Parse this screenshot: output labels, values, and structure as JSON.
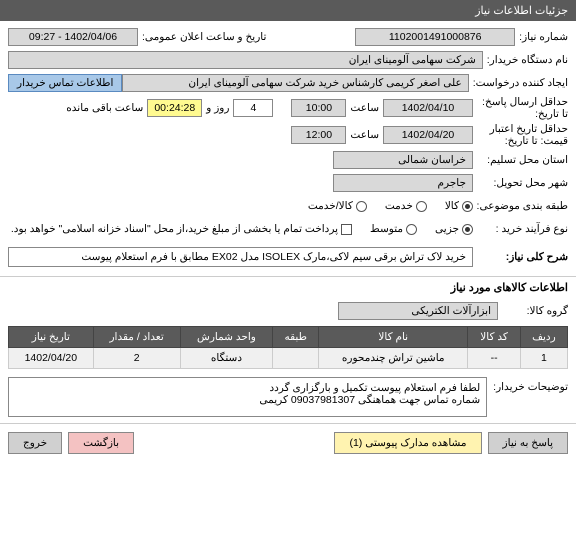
{
  "header": {
    "title": "جزئیات اطلاعات نیاز"
  },
  "form": {
    "need_number_lbl": "شماره نیاز:",
    "need_number": "1102001491000876",
    "public_date_lbl": "تاریخ و ساعت اعلان عمومی:",
    "public_date": "1402/04/06 - 09:27",
    "buyer_name_lbl": "نام دستگاه خریدار:",
    "buyer_name": "شرکت سهامی آلومینای ایران",
    "requester_lbl": "ایجاد کننده درخواست:",
    "requester": "علی اصغر کریمی کارشناس خرید شرکت سهامی آلومینای ایران",
    "contact_btn": "اطلاعات تماس خریدار",
    "deadline_lbl": "حداقل ارسال پاسخ:",
    "deadline_date_lbl": "تا تاریخ:",
    "deadline_date": "1402/04/10",
    "deadline_time_lbl": "ساعت",
    "deadline_time": "10:00",
    "days_lbl": "روز و",
    "days": "4",
    "countdown": "00:24:28",
    "remaining_lbl": "ساعت باقی مانده",
    "validity_lbl": "حداقل تاریخ اعتبار",
    "validity_lbl2": "قیمت: تا تاریخ:",
    "validity_date": "1402/04/20",
    "validity_time_lbl": "ساعت",
    "validity_time": "12:00",
    "province_lbl": "استان محل تسلیم:",
    "province": "خراسان شمالی",
    "city_lbl": "شهر محل تحویل:",
    "city": "جاجرم",
    "category_lbl": "طبقه بندی موضوعی:",
    "cat_goods": "کالا",
    "cat_service": "خدمت",
    "cat_both": "کالا/خدمت",
    "process_lbl": "نوع فرآیند خرید :",
    "proc_low": "جزیی",
    "proc_mid": "متوسط",
    "payment_note": "پرداخت تمام یا بخشی از مبلغ خرید،از محل \"اسناد خزانه اسلامی\" خواهد بود.",
    "desc_lbl": "شرح کلی نیاز:",
    "desc": "خرید لاک تراش برقی سیم لاکی،مارک ISOLEX مدل EX02 مطابق با فرم استعلام پیوست"
  },
  "items_section": {
    "title": "اطلاعات کالاهای مورد نیاز",
    "group_lbl": "گروه کالا:",
    "group": "ابزارآلات الکتریکی",
    "cols": [
      "ردیف",
      "کد کالا",
      "نام کالا",
      "طبقه",
      "واحد شمارش",
      "تعداد / مقدار",
      "تاریخ نیاز"
    ],
    "rows": [
      [
        "1",
        "--",
        "ماشین تراش چندمحوره",
        "",
        "دستگاه",
        "2",
        "1402/04/20"
      ]
    ]
  },
  "notes": {
    "lbl": "توضیحات خریدار:",
    "line1": "لطفا  فرم استعلام پیوست تکمیل و بارگزاری گردد",
    "line2": "شماره تماس جهت هماهنگی 09037981307 کریمی"
  },
  "footer": {
    "respond": "پاسخ به نیاز",
    "attachments": "مشاهده مدارک پیوستی (1)",
    "back": "بازگشت",
    "exit": "خروج"
  }
}
